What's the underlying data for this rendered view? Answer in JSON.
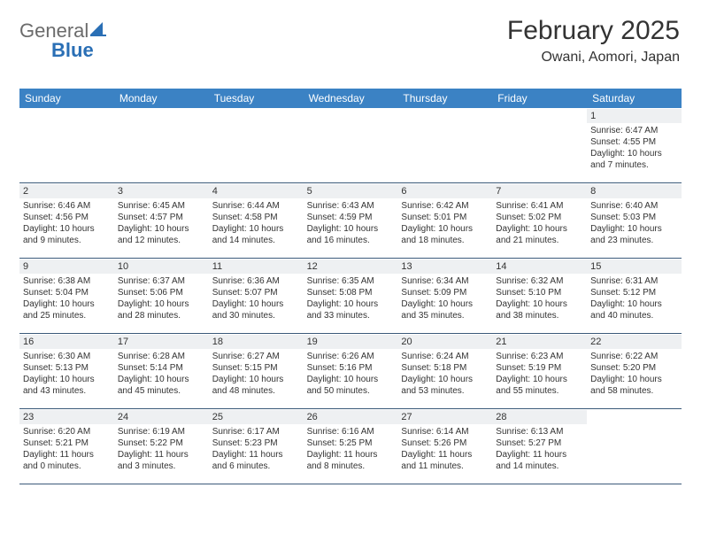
{
  "brand": {
    "part1": "General",
    "part2": "Blue"
  },
  "colors": {
    "header_bg": "#3b82c4",
    "header_text": "#ffffff",
    "daynum_bg": "#eef0f2",
    "text": "#333333",
    "rule": "#3b5a7a",
    "logo_gray": "#6b6b6b",
    "logo_blue": "#2a6fb5"
  },
  "typography": {
    "title_fontsize": 30,
    "subtitle_fontsize": 16,
    "dayhead_fontsize": 12,
    "daynum_fontsize": 11,
    "info_fontsize": 10
  },
  "title": "February 2025",
  "location": "Owani, Aomori, Japan",
  "dow": [
    "Sunday",
    "Monday",
    "Tuesday",
    "Wednesday",
    "Thursday",
    "Friday",
    "Saturday"
  ],
  "weeks": [
    [
      null,
      null,
      null,
      null,
      null,
      null,
      {
        "n": "1",
        "sr": "Sunrise: 6:47 AM",
        "ss": "Sunset: 4:55 PM",
        "dl": "Daylight: 10 hours and 7 minutes."
      }
    ],
    [
      {
        "n": "2",
        "sr": "Sunrise: 6:46 AM",
        "ss": "Sunset: 4:56 PM",
        "dl": "Daylight: 10 hours and 9 minutes."
      },
      {
        "n": "3",
        "sr": "Sunrise: 6:45 AM",
        "ss": "Sunset: 4:57 PM",
        "dl": "Daylight: 10 hours and 12 minutes."
      },
      {
        "n": "4",
        "sr": "Sunrise: 6:44 AM",
        "ss": "Sunset: 4:58 PM",
        "dl": "Daylight: 10 hours and 14 minutes."
      },
      {
        "n": "5",
        "sr": "Sunrise: 6:43 AM",
        "ss": "Sunset: 4:59 PM",
        "dl": "Daylight: 10 hours and 16 minutes."
      },
      {
        "n": "6",
        "sr": "Sunrise: 6:42 AM",
        "ss": "Sunset: 5:01 PM",
        "dl": "Daylight: 10 hours and 18 minutes."
      },
      {
        "n": "7",
        "sr": "Sunrise: 6:41 AM",
        "ss": "Sunset: 5:02 PM",
        "dl": "Daylight: 10 hours and 21 minutes."
      },
      {
        "n": "8",
        "sr": "Sunrise: 6:40 AM",
        "ss": "Sunset: 5:03 PM",
        "dl": "Daylight: 10 hours and 23 minutes."
      }
    ],
    [
      {
        "n": "9",
        "sr": "Sunrise: 6:38 AM",
        "ss": "Sunset: 5:04 PM",
        "dl": "Daylight: 10 hours and 25 minutes."
      },
      {
        "n": "10",
        "sr": "Sunrise: 6:37 AM",
        "ss": "Sunset: 5:06 PM",
        "dl": "Daylight: 10 hours and 28 minutes."
      },
      {
        "n": "11",
        "sr": "Sunrise: 6:36 AM",
        "ss": "Sunset: 5:07 PM",
        "dl": "Daylight: 10 hours and 30 minutes."
      },
      {
        "n": "12",
        "sr": "Sunrise: 6:35 AM",
        "ss": "Sunset: 5:08 PM",
        "dl": "Daylight: 10 hours and 33 minutes."
      },
      {
        "n": "13",
        "sr": "Sunrise: 6:34 AM",
        "ss": "Sunset: 5:09 PM",
        "dl": "Daylight: 10 hours and 35 minutes."
      },
      {
        "n": "14",
        "sr": "Sunrise: 6:32 AM",
        "ss": "Sunset: 5:10 PM",
        "dl": "Daylight: 10 hours and 38 minutes."
      },
      {
        "n": "15",
        "sr": "Sunrise: 6:31 AM",
        "ss": "Sunset: 5:12 PM",
        "dl": "Daylight: 10 hours and 40 minutes."
      }
    ],
    [
      {
        "n": "16",
        "sr": "Sunrise: 6:30 AM",
        "ss": "Sunset: 5:13 PM",
        "dl": "Daylight: 10 hours and 43 minutes."
      },
      {
        "n": "17",
        "sr": "Sunrise: 6:28 AM",
        "ss": "Sunset: 5:14 PM",
        "dl": "Daylight: 10 hours and 45 minutes."
      },
      {
        "n": "18",
        "sr": "Sunrise: 6:27 AM",
        "ss": "Sunset: 5:15 PM",
        "dl": "Daylight: 10 hours and 48 minutes."
      },
      {
        "n": "19",
        "sr": "Sunrise: 6:26 AM",
        "ss": "Sunset: 5:16 PM",
        "dl": "Daylight: 10 hours and 50 minutes."
      },
      {
        "n": "20",
        "sr": "Sunrise: 6:24 AM",
        "ss": "Sunset: 5:18 PM",
        "dl": "Daylight: 10 hours and 53 minutes."
      },
      {
        "n": "21",
        "sr": "Sunrise: 6:23 AM",
        "ss": "Sunset: 5:19 PM",
        "dl": "Daylight: 10 hours and 55 minutes."
      },
      {
        "n": "22",
        "sr": "Sunrise: 6:22 AM",
        "ss": "Sunset: 5:20 PM",
        "dl": "Daylight: 10 hours and 58 minutes."
      }
    ],
    [
      {
        "n": "23",
        "sr": "Sunrise: 6:20 AM",
        "ss": "Sunset: 5:21 PM",
        "dl": "Daylight: 11 hours and 0 minutes."
      },
      {
        "n": "24",
        "sr": "Sunrise: 6:19 AM",
        "ss": "Sunset: 5:22 PM",
        "dl": "Daylight: 11 hours and 3 minutes."
      },
      {
        "n": "25",
        "sr": "Sunrise: 6:17 AM",
        "ss": "Sunset: 5:23 PM",
        "dl": "Daylight: 11 hours and 6 minutes."
      },
      {
        "n": "26",
        "sr": "Sunrise: 6:16 AM",
        "ss": "Sunset: 5:25 PM",
        "dl": "Daylight: 11 hours and 8 minutes."
      },
      {
        "n": "27",
        "sr": "Sunrise: 6:14 AM",
        "ss": "Sunset: 5:26 PM",
        "dl": "Daylight: 11 hours and 11 minutes."
      },
      {
        "n": "28",
        "sr": "Sunrise: 6:13 AM",
        "ss": "Sunset: 5:27 PM",
        "dl": "Daylight: 11 hours and 14 minutes."
      },
      null
    ]
  ]
}
